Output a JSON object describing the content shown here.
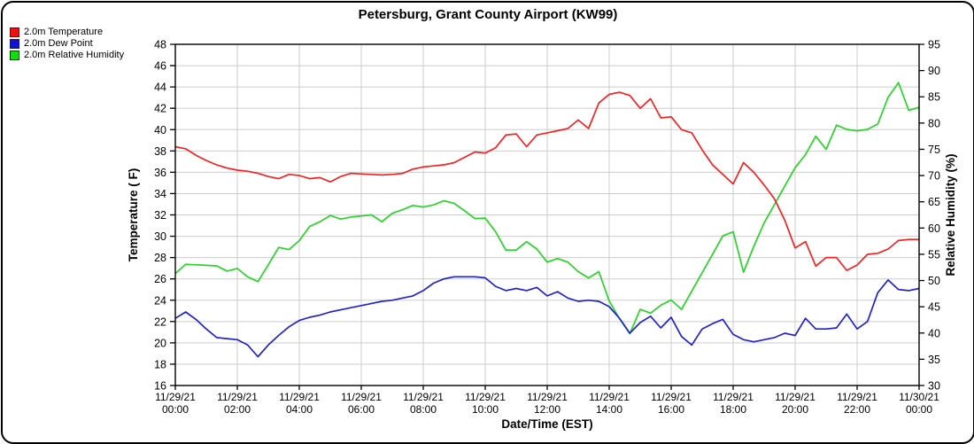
{
  "window": {
    "title": "Petersburg, Grant County Airport (KW99)"
  },
  "legend": {
    "items": [
      {
        "label": "2.0m Temperature",
        "color": "#ee1111"
      },
      {
        "label": "2.0m Dew Point",
        "color": "#1111dd"
      },
      {
        "label": "2.0m Relative Humidity",
        "color": "#11dd11"
      }
    ]
  },
  "chart_data": {
    "type": "line",
    "title": "Petersburg, Grant County Airport (KW99)",
    "xlabel": "Date/Time (EST)",
    "ylabel_left": "Temperature ( F)",
    "ylabel_right": "Relative Humidity (%)",
    "grid": true,
    "legend_position": "top-left",
    "x_interval_minutes": 20,
    "x_total_hours": 24,
    "x_tick_labels": [
      {
        "date": "11/29/21",
        "time": "00:00"
      },
      {
        "date": "11/29/21",
        "time": "02:00"
      },
      {
        "date": "11/29/21",
        "time": "04:00"
      },
      {
        "date": "11/29/21",
        "time": "06:00"
      },
      {
        "date": "11/29/21",
        "time": "08:00"
      },
      {
        "date": "11/29/21",
        "time": "10:00"
      },
      {
        "date": "11/29/21",
        "time": "12:00"
      },
      {
        "date": "11/29/21",
        "time": "14:00"
      },
      {
        "date": "11/29/21",
        "time": "16:00"
      },
      {
        "date": "11/29/21",
        "time": "18:00"
      },
      {
        "date": "11/29/21",
        "time": "20:00"
      },
      {
        "date": "11/29/21",
        "time": "22:00"
      },
      {
        "date": "11/30/21",
        "time": "00:00"
      }
    ],
    "y_left": {
      "min": 16,
      "max": 48,
      "tick_step": 2
    },
    "y_right": {
      "min": 30,
      "max": 95,
      "tick_step": 5
    },
    "series": [
      {
        "name": "2.0m Temperature",
        "axis": "left",
        "color": "#f52222",
        "values": [
          38.4,
          38.2,
          37.6,
          37.1,
          36.7,
          36.4,
          36.2,
          36.1,
          35.9,
          35.6,
          35.4,
          35.8,
          35.7,
          35.4,
          35.5,
          35.1,
          35.6,
          35.9,
          35.85,
          35.8,
          35.75,
          35.8,
          35.9,
          36.3,
          36.5,
          36.6,
          36.7,
          36.9,
          37.4,
          37.9,
          37.8,
          38.3,
          39.5,
          39.6,
          38.4,
          39.5,
          39.7,
          39.9,
          40.1,
          40.9,
          40.1,
          42.5,
          43.3,
          43.5,
          43.2,
          42.0,
          42.9,
          41.1,
          41.2,
          40.0,
          39.7,
          38.1,
          36.7,
          35.8,
          34.9,
          36.9,
          36.0,
          34.8,
          33.5,
          31.5,
          28.9,
          29.5,
          27.2,
          28.0,
          28.0,
          26.8,
          27.3,
          28.3,
          28.4,
          28.8,
          29.6,
          29.7,
          29.7
        ]
      },
      {
        "name": "2.0m Dew Point",
        "axis": "left",
        "color": "#2222cc",
        "values": [
          22.3,
          22.9,
          22.2,
          21.3,
          20.5,
          20.4,
          20.3,
          19.8,
          18.7,
          19.8,
          20.7,
          21.5,
          22.1,
          22.4,
          22.6,
          22.9,
          23.1,
          23.3,
          23.5,
          23.7,
          23.9,
          24.0,
          24.2,
          24.4,
          24.9,
          25.6,
          26.0,
          26.2,
          26.2,
          26.2,
          26.1,
          25.3,
          24.9,
          25.1,
          24.9,
          25.2,
          24.4,
          24.8,
          24.2,
          23.9,
          24.0,
          23.9,
          23.4,
          22.3,
          20.9,
          21.9,
          22.5,
          21.4,
          22.4,
          20.6,
          19.8,
          21.3,
          21.8,
          22.2,
          20.8,
          20.3,
          20.1,
          20.3,
          20.5,
          20.9,
          20.7,
          22.3,
          21.3,
          21.3,
          21.4,
          22.7,
          21.3,
          22.0,
          24.7,
          25.9,
          25.0,
          24.9,
          25.1
        ]
      },
      {
        "name": "2.0m Relative Humidity",
        "axis": "right",
        "color": "#28d428",
        "values": [
          51.3,
          53.1,
          53.0,
          52.9,
          52.8,
          51.8,
          52.3,
          50.7,
          49.8,
          53.0,
          56.3,
          55.9,
          57.6,
          60.3,
          61.2,
          62.4,
          61.7,
          62.1,
          62.3,
          62.5,
          61.2,
          62.8,
          63.5,
          64.3,
          64.0,
          64.4,
          65.2,
          64.7,
          63.3,
          61.8,
          61.9,
          59.3,
          55.8,
          55.8,
          57.4,
          56.0,
          53.5,
          54.2,
          53.5,
          51.7,
          50.5,
          51.7,
          46.1,
          42.7,
          39.9,
          44.5,
          43.8,
          45.3,
          46.3,
          44.5,
          48.0,
          51.5,
          55.0,
          58.5,
          59.3,
          51.6,
          56.5,
          61.0,
          64.5,
          68.0,
          71.5,
          74.0,
          77.5,
          75.0,
          79.6,
          78.8,
          78.5,
          78.8,
          79.8,
          84.9,
          87.7,
          82.4,
          83.0
        ]
      }
    ]
  }
}
